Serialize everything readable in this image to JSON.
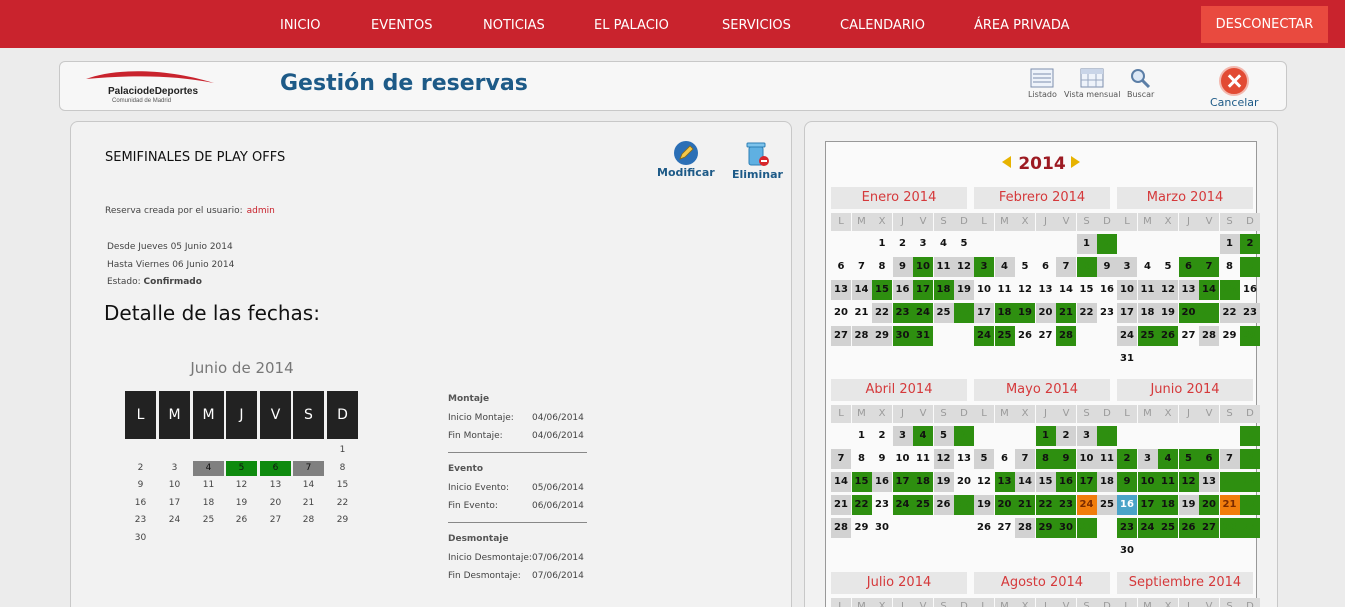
{
  "nav": {
    "items": [
      "INICIO",
      "EVENTOS",
      "NOTICIAS",
      "EL PALACIO",
      "SERVICIOS",
      "CALENDARIO",
      "ÁREA PRIVADA"
    ],
    "logout": "DESCONECTAR"
  },
  "header": {
    "logo_text": "PalaciodeDeportes",
    "logo_sub": "Comunidad de Madrid",
    "title": "Gestión de reservas",
    "buttons": [
      "Listado",
      "Vista mensual",
      "Buscar"
    ],
    "cancel": "Cancelar"
  },
  "reservation": {
    "title": "SEMIFINALES DE PLAY OFFS",
    "modify": "Modificar",
    "delete": "Eliminar",
    "created_label": "Reserva creada por el usuario:",
    "created_user": "admin",
    "from": "Desde Jueves 05 Junio 2014",
    "to": "Hasta Viernes 06 Junio 2014",
    "status_label": "Estado:",
    "status_value": "Confirmado",
    "detail_heading": "Detalle de las fechas:"
  },
  "mini_calendar": {
    "title": "Junio de 2014",
    "headers": [
      "L",
      "M",
      "M",
      "J",
      "V",
      "S",
      "D"
    ],
    "weeks": [
      [
        "",
        "",
        "",
        "",
        "",
        "",
        "1"
      ],
      [
        "2",
        "3",
        "4",
        "5",
        "6",
        "7",
        "8"
      ],
      [
        "9",
        "10",
        "11",
        "12",
        "13",
        "14",
        "15"
      ],
      [
        "16",
        "17",
        "18",
        "19",
        "20",
        "21",
        "22"
      ],
      [
        "23",
        "24",
        "25",
        "26",
        "27",
        "28",
        "29"
      ],
      [
        "30",
        "",
        "",
        "",
        "",
        "",
        ""
      ]
    ],
    "gray_days": [
      "4",
      "7"
    ],
    "green_days": [
      "5",
      "6"
    ]
  },
  "phases": [
    {
      "title": "Montaje",
      "rows": [
        [
          "Inicio Montaje:",
          "04/06/2014"
        ],
        [
          "Fin Montaje:",
          "04/06/2014"
        ]
      ]
    },
    {
      "title": "Evento",
      "rows": [
        [
          "Inicio Evento:",
          "05/06/2014"
        ],
        [
          "Fin Evento:",
          "06/06/2014"
        ]
      ]
    },
    {
      "title": "Desmontaje",
      "rows": [
        [
          "Inicio Desmontaje:",
          "07/06/2014"
        ],
        [
          "Fin Desmontaje:",
          "07/06/2014"
        ]
      ]
    }
  ],
  "year_calendar": {
    "year": "2014",
    "dow": [
      "L",
      "M",
      "X",
      "J",
      "V",
      "S",
      "D"
    ],
    "months": [
      {
        "name": "Enero 2014",
        "offset": 2,
        "days": 31,
        "lgray": [
          9,
          11,
          12,
          13,
          14,
          16,
          19,
          22,
          25,
          27,
          28,
          29
        ],
        "green": [
          10,
          15,
          17,
          18,
          23,
          24,
          26,
          30,
          31
        ],
        "hidden": [
          12,
          19,
          26
        ]
      },
      {
        "name": "Febrero 2014",
        "offset": 5,
        "days": 28,
        "lgray": [
          1,
          3,
          4,
          7,
          9,
          17,
          20,
          22
        ],
        "green": [
          2,
          3,
          8,
          18,
          19,
          21,
          24,
          25,
          28
        ],
        "hidden": [
          2,
          8,
          16,
          23
        ]
      },
      {
        "name": "Marzo 2014",
        "offset": 5,
        "days": 31,
        "lgray": [
          1,
          3,
          10,
          11,
          12,
          13,
          17,
          18,
          19,
          22,
          23,
          24,
          28
        ],
        "green": [
          2,
          6,
          7,
          9,
          14,
          15,
          20,
          21,
          25,
          26,
          30
        ],
        "hidden": [
          8,
          9,
          15,
          16,
          21,
          22,
          29,
          30
        ]
      },
      {
        "name": "Abril 2014",
        "offset": 1,
        "days": 30,
        "lgray": [
          3,
          5,
          7,
          12,
          14,
          16,
          19,
          21,
          26,
          28
        ],
        "green": [
          4,
          6,
          15,
          17,
          18,
          22,
          24,
          25,
          27
        ],
        "hidden": [
          6,
          13,
          20,
          27
        ]
      },
      {
        "name": "Mayo 2014",
        "offset": 3,
        "days": 31,
        "lgray": [
          2,
          3,
          5,
          7,
          10,
          11,
          14,
          15,
          18,
          19,
          25,
          28
        ],
        "green": [
          1,
          4,
          8,
          9,
          13,
          16,
          17,
          20,
          21,
          22,
          23,
          29,
          30,
          31
        ],
        "hidden": [
          4,
          11,
          31
        ]
      },
      {
        "name": "Junio 2014",
        "offset": 6,
        "days": 30,
        "lgray": [
          3,
          7,
          13,
          19
        ],
        "green": [
          1,
          2,
          4,
          5,
          6,
          8,
          9,
          10,
          11,
          12,
          14,
          15,
          17,
          18,
          20,
          22,
          23,
          24,
          25,
          26,
          27,
          28,
          29
        ],
        "hidden": [
          1,
          8,
          14,
          15,
          22,
          28,
          29
        ],
        "orange": [
          21
        ],
        "blue": [
          16
        ]
      },
      {
        "name": "Julio 2014",
        "offset": 1,
        "days": 31,
        "lgray": [],
        "green": [],
        "hidden": []
      },
      {
        "name": "Agosto 2014",
        "offset": 4,
        "days": 31,
        "lgray": [],
        "green": [],
        "hidden": []
      },
      {
        "name": "Septiembre 2014",
        "offset": 0,
        "days": 30,
        "lgray": [],
        "green": [],
        "hidden": []
      }
    ],
    "orange_may": [
      24
    ]
  }
}
